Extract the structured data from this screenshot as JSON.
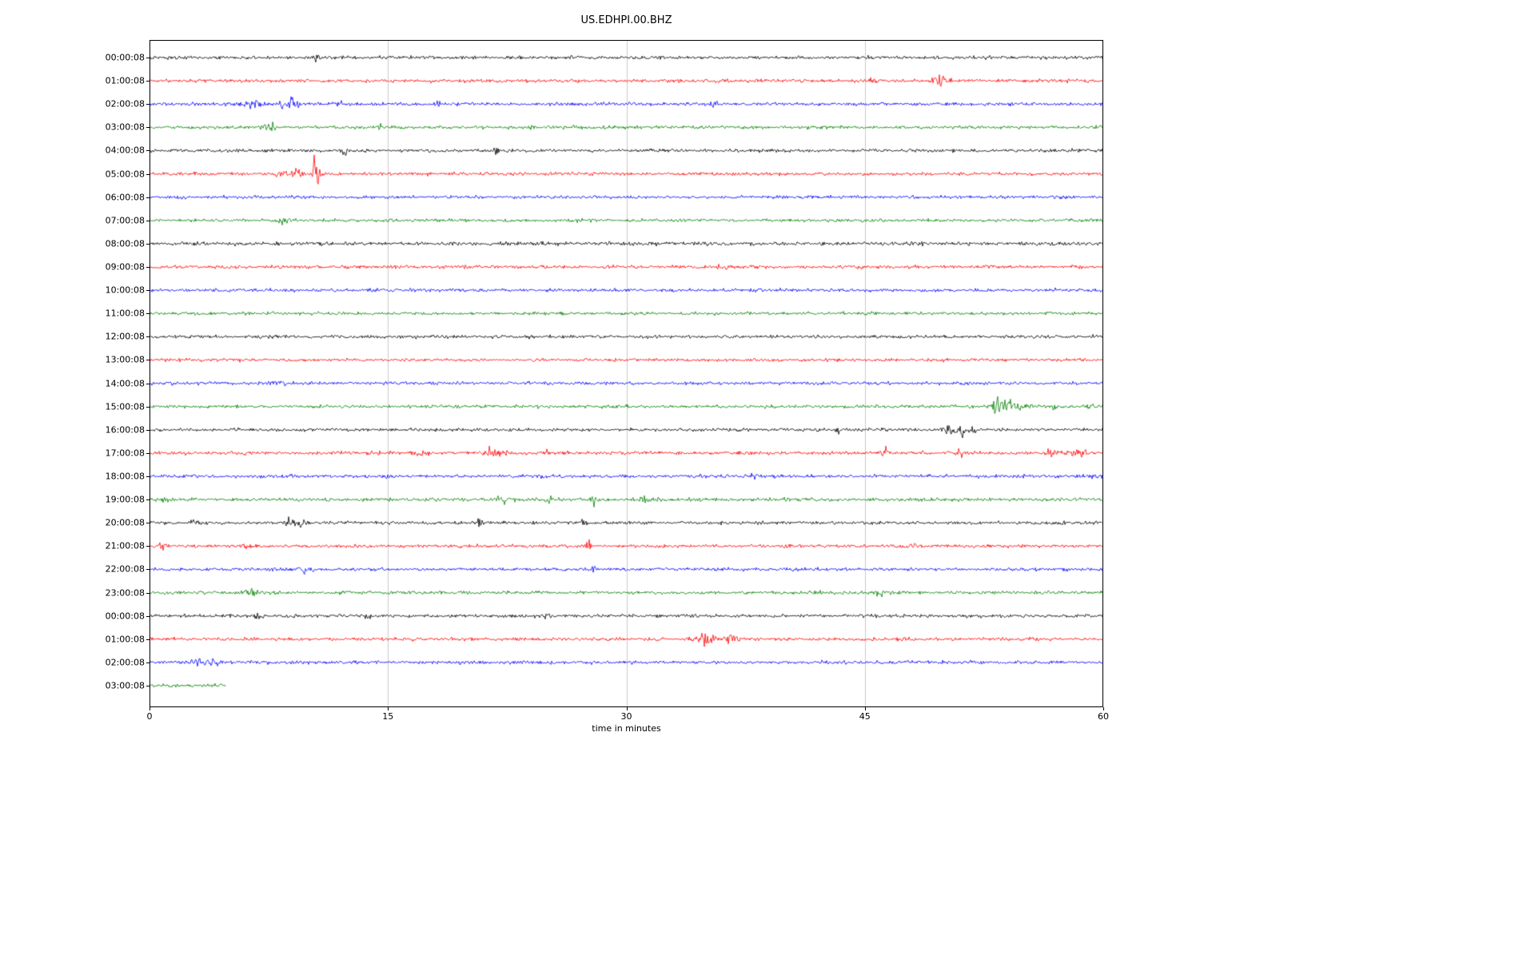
{
  "chart_data": {
    "type": "line",
    "subtype": "seismogram-dayplot",
    "title": "US.EDHPI.00.BHZ",
    "xlabel": "time in minutes",
    "xlim": [
      0,
      60
    ],
    "x_ticks": [
      0,
      15,
      30,
      45,
      60
    ],
    "grid": "vertical-gridlines-at-15-30-45",
    "grid_color": "#cccccc",
    "colors_cycle": [
      "#000000",
      "#ff0000",
      "#0000ff",
      "#008000"
    ],
    "rows": [
      {
        "label": "00:00:08",
        "color": "#000000",
        "noise": 1.4,
        "end": 60,
        "events": [
          [
            10.5,
            4,
            0.2
          ],
          [
            26.5,
            3,
            0.2
          ]
        ]
      },
      {
        "label": "01:00:08",
        "color": "#ff0000",
        "noise": 1.4,
        "end": 60,
        "events": [
          [
            45.6,
            4,
            0.3
          ],
          [
            49.7,
            7,
            0.5
          ],
          [
            50.1,
            5,
            0.3
          ]
        ]
      },
      {
        "label": "02:00:08",
        "color": "#0000ff",
        "noise": 1.4,
        "end": 60,
        "events": [
          [
            6.5,
            5,
            0.8
          ],
          [
            8.3,
            11,
            0.12
          ],
          [
            8.9,
            14,
            0.15
          ],
          [
            9.3,
            9,
            0.12
          ],
          [
            12.0,
            4,
            0.2
          ],
          [
            18.1,
            10,
            0.12
          ],
          [
            35.5,
            6,
            0.2
          ]
        ]
      },
      {
        "label": "03:00:08",
        "color": "#008000",
        "noise": 1.4,
        "end": 60,
        "events": [
          [
            7.7,
            6,
            0.4
          ],
          [
            14.5,
            3,
            0.2
          ],
          [
            24.0,
            5,
            0.15
          ]
        ]
      },
      {
        "label": "04:00:08",
        "color": "#000000",
        "noise": 1.4,
        "end": 60,
        "events": [
          [
            12.3,
            6,
            0.15
          ],
          [
            17.5,
            3,
            0.2
          ],
          [
            21.8,
            4,
            0.2
          ]
        ]
      },
      {
        "label": "05:00:08",
        "color": "#ff0000",
        "noise": 1.4,
        "end": 60,
        "events": [
          [
            8.2,
            7,
            0.3
          ],
          [
            9.0,
            9,
            0.25
          ],
          [
            9.5,
            6,
            0.2
          ],
          [
            10.4,
            27,
            0.18
          ],
          [
            10.8,
            9,
            0.3
          ]
        ]
      },
      {
        "label": "06:00:08",
        "color": "#0000ff",
        "noise": 1.3,
        "end": 60,
        "events": [
          [
            2.0,
            3,
            0.3
          ]
        ]
      },
      {
        "label": "07:00:08",
        "color": "#008000",
        "noise": 1.3,
        "end": 60,
        "events": [
          [
            8.5,
            4,
            0.4
          ],
          [
            27.0,
            3,
            0.3
          ]
        ]
      },
      {
        "label": "08:00:08",
        "color": "#000000",
        "noise": 1.6,
        "end": 60,
        "events": [
          [
            3.0,
            3,
            0.4
          ],
          [
            10.0,
            3,
            0.3
          ]
        ]
      },
      {
        "label": "09:00:08",
        "color": "#ff0000",
        "noise": 1.4,
        "end": 60,
        "events": [
          [
            36.0,
            3,
            0.3
          ]
        ]
      },
      {
        "label": "10:00:08",
        "color": "#0000ff",
        "noise": 1.4,
        "end": 60,
        "events": [
          [
            38.0,
            3,
            0.3
          ]
        ]
      },
      {
        "label": "11:00:08",
        "color": "#008000",
        "noise": 1.3,
        "end": 60,
        "events": []
      },
      {
        "label": "12:00:08",
        "color": "#000000",
        "noise": 1.4,
        "end": 60,
        "events": []
      },
      {
        "label": "13:00:08",
        "color": "#ff0000",
        "noise": 1.3,
        "end": 60,
        "events": []
      },
      {
        "label": "14:00:08",
        "color": "#0000ff",
        "noise": 1.4,
        "end": 60,
        "events": [
          [
            8.2,
            5,
            0.4
          ]
        ]
      },
      {
        "label": "15:00:08",
        "color": "#008000",
        "noise": 1.4,
        "end": 60,
        "events": [
          [
            53.2,
            23,
            0.2
          ],
          [
            53.8,
            17,
            0.3
          ],
          [
            54.3,
            11,
            0.3
          ],
          [
            55.0,
            6,
            0.3
          ],
          [
            56.9,
            10,
            0.12
          ],
          [
            59.2,
            8,
            0.25
          ]
        ]
      },
      {
        "label": "16:00:08",
        "color": "#000000",
        "noise": 1.4,
        "end": 60,
        "events": [
          [
            43.3,
            6,
            0.15
          ],
          [
            50.3,
            8,
            0.4
          ],
          [
            51.2,
            11,
            0.35
          ],
          [
            51.9,
            6,
            0.25
          ]
        ]
      },
      {
        "label": "17:00:08",
        "color": "#ff0000",
        "noise": 1.5,
        "end": 60,
        "events": [
          [
            17.0,
            5,
            0.5
          ],
          [
            21.5,
            8,
            0.25
          ],
          [
            22.2,
            7,
            0.35
          ],
          [
            25.0,
            8,
            0.12
          ],
          [
            46.2,
            6,
            0.3
          ],
          [
            51.0,
            5,
            0.25
          ],
          [
            56.6,
            5,
            0.4
          ],
          [
            58.5,
            6,
            0.6
          ]
        ]
      },
      {
        "label": "18:00:08",
        "color": "#0000ff",
        "noise": 1.4,
        "end": 60,
        "events": [
          [
            15.0,
            4,
            0.25
          ],
          [
            24.6,
            4,
            0.25
          ],
          [
            34.8,
            4,
            0.2
          ],
          [
            37.9,
            6,
            0.25
          ],
          [
            59.3,
            6,
            0.4
          ]
        ]
      },
      {
        "label": "19:00:08",
        "color": "#008000",
        "noise": 1.5,
        "end": 60,
        "events": [
          [
            1.0,
            4,
            0.3
          ],
          [
            22.3,
            7,
            0.4
          ],
          [
            25.0,
            4,
            0.3
          ],
          [
            27.9,
            12,
            0.12
          ],
          [
            31.2,
            6,
            0.3
          ]
        ]
      },
      {
        "label": "20:00:08",
        "color": "#000000",
        "noise": 1.4,
        "end": 60,
        "events": [
          [
            2.8,
            4,
            0.2
          ],
          [
            8.8,
            6,
            0.25
          ],
          [
            9.4,
            6,
            0.35
          ],
          [
            20.8,
            11,
            0.12
          ],
          [
            27.3,
            9,
            0.15
          ],
          [
            57.5,
            7,
            0.15
          ]
        ]
      },
      {
        "label": "21:00:08",
        "color": "#ff0000",
        "noise": 1.4,
        "end": 60,
        "events": [
          [
            0.8,
            5,
            0.4
          ],
          [
            6.0,
            5,
            0.25
          ],
          [
            27.6,
            13,
            0.12
          ],
          [
            40.0,
            3,
            0.2
          ],
          [
            48.0,
            4,
            0.2
          ]
        ]
      },
      {
        "label": "22:00:08",
        "color": "#0000ff",
        "noise": 1.4,
        "end": 60,
        "events": [
          [
            9.8,
            5,
            0.4
          ],
          [
            27.9,
            9,
            0.1
          ],
          [
            42.0,
            3,
            0.2
          ],
          [
            57.5,
            7,
            0.15
          ]
        ]
      },
      {
        "label": "23:00:08",
        "color": "#008000",
        "noise": 1.4,
        "end": 60,
        "events": [
          [
            6.3,
            6,
            0.4
          ],
          [
            42.0,
            3,
            0.3
          ],
          [
            46.0,
            5,
            0.4
          ]
        ]
      },
      {
        "label": "00:00:08",
        "color": "#000000",
        "noise": 1.4,
        "end": 60,
        "events": [
          [
            6.8,
            5,
            0.3
          ],
          [
            13.7,
            5,
            0.25
          ],
          [
            25.0,
            3,
            0.3
          ]
        ]
      },
      {
        "label": "01:00:08",
        "color": "#ff0000",
        "noise": 1.4,
        "end": 60,
        "events": [
          [
            34.8,
            8,
            0.6
          ],
          [
            35.3,
            7,
            0.4
          ],
          [
            36.6,
            7,
            0.4
          ],
          [
            55.5,
            4,
            0.3
          ]
        ]
      },
      {
        "label": "02:00:08",
        "color": "#0000ff",
        "noise": 1.4,
        "end": 60,
        "events": [
          [
            3.2,
            6,
            0.6
          ],
          [
            4.2,
            5,
            0.4
          ]
        ]
      },
      {
        "label": "03:00:08",
        "color": "#008000",
        "noise": 1.5,
        "end": 4.8,
        "events": []
      }
    ]
  }
}
